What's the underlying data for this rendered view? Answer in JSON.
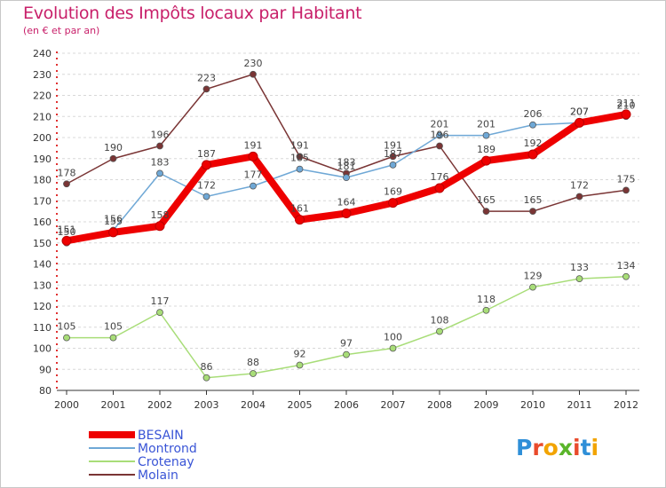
{
  "header": {
    "title": "Evolution des Impôts locaux par Habitant",
    "subtitle": "(en € et par an)"
  },
  "logo": {
    "text": "Proxiti",
    "colors": [
      "#2f8fd8",
      "#e94b2c",
      "#f2a400",
      "#5ab52a",
      "#e94b2c",
      "#2f8fd8",
      "#f2a400"
    ]
  },
  "chart_data": {
    "type": "line",
    "x": [
      "2000",
      "2001",
      "2002",
      "2003",
      "2004",
      "2005",
      "2006",
      "2007",
      "2008",
      "2009",
      "2010",
      "2011",
      "2012"
    ],
    "ylim": [
      80,
      240
    ],
    "yticks": [
      80,
      90,
      100,
      110,
      120,
      130,
      140,
      150,
      160,
      170,
      180,
      190,
      200,
      210,
      220,
      230,
      240
    ],
    "grid": "horizontal dashed",
    "legend_position": "bottom-left",
    "series": [
      {
        "name": "BESAIN",
        "color": "#ee0000",
        "values": [
          151,
          155,
          158,
          187,
          191,
          161,
          164,
          169,
          176,
          189,
          192,
          207,
          211
        ]
      },
      {
        "name": "Montrond",
        "color": "#6fa8d6",
        "values": [
          150,
          156,
          183,
          172,
          177,
          185,
          181,
          187,
          201,
          201,
          206,
          207,
          210
        ]
      },
      {
        "name": "Crotenay",
        "color": "#a8dd78",
        "values": [
          105,
          105,
          117,
          86,
          88,
          92,
          97,
          100,
          108,
          118,
          129,
          133,
          134
        ]
      },
      {
        "name": "Molain",
        "color": "#7a3535",
        "values": [
          178,
          190,
          196,
          223,
          230,
          191,
          183,
          191,
          196,
          165,
          165,
          172,
          175
        ]
      }
    ]
  }
}
